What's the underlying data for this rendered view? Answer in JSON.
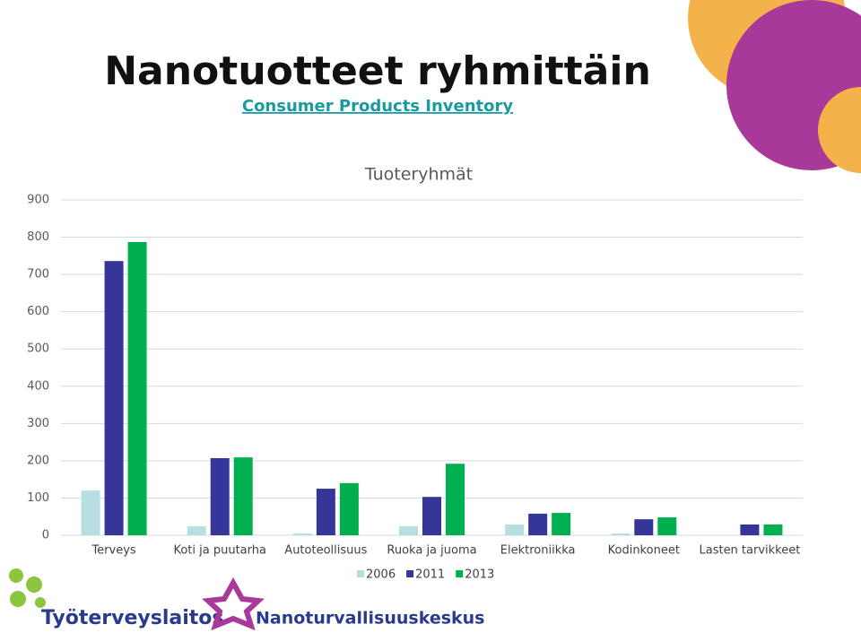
{
  "header": {
    "title": "Nanotuotteet ryhmittäin",
    "subtitle": "Consumer Products Inventory"
  },
  "chart_data": {
    "type": "bar",
    "title": "Tuoteryhmät",
    "categories": [
      "Terveys",
      "Koti ja puutarha",
      "Autoteollisuus",
      "Ruoka ja juoma",
      "Elektroniikka",
      "Kodinkoneet",
      "Lasten tarvikkeet"
    ],
    "series": [
      {
        "name": "2006",
        "color": "#b7dfe3",
        "values": [
          120,
          24,
          5,
          24,
          29,
          5,
          0
        ]
      },
      {
        "name": "2011",
        "color": "#36369a",
        "values": [
          736,
          207,
          125,
          103,
          58,
          43,
          29
        ]
      },
      {
        "name": "2013",
        "color": "#00b050",
        "values": [
          787,
          209,
          140,
          192,
          60,
          48,
          29
        ]
      }
    ],
    "ylim": [
      0,
      900
    ],
    "yticks": [
      0,
      100,
      200,
      300,
      400,
      500,
      600,
      700,
      800,
      900
    ],
    "grid": true,
    "legend": "bottom"
  },
  "logos": [
    "Työterveyslaitos",
    "Nanoturvallisuuskeskus"
  ]
}
